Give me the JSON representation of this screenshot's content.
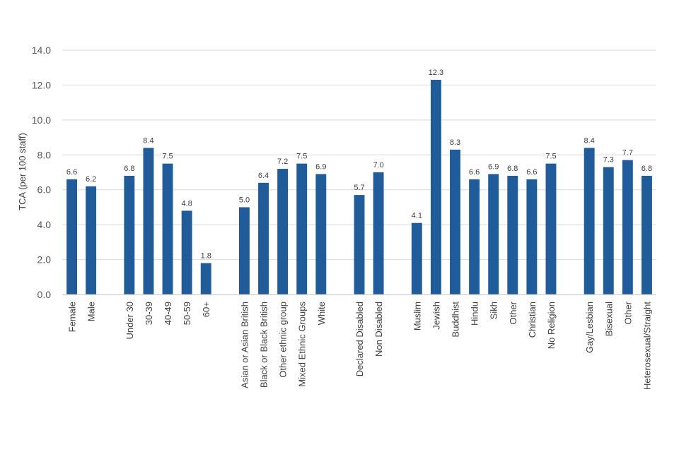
{
  "chart_data": {
    "type": "bar",
    "title": "",
    "xlabel": "",
    "ylabel": "TCA (per 100 staff)",
    "ylim": [
      0,
      14
    ],
    "yticks": [
      "0.0",
      "2.0",
      "4.0",
      "6.0",
      "8.0",
      "10.0",
      "12.0",
      "14.0"
    ],
    "grid": true,
    "legend": "none",
    "bar_color": "#1f5c99",
    "groups": [
      {
        "categories": [
          "Female",
          "Male"
        ],
        "values": [
          6.6,
          6.2
        ],
        "labels": [
          "6.6",
          "6.2"
        ]
      },
      {
        "categories": [
          "Under 30",
          "30-39",
          "40-49",
          "50-59",
          "60+"
        ],
        "values": [
          6.8,
          8.4,
          7.5,
          4.8,
          1.8
        ],
        "labels": [
          "6.8",
          "8.4",
          "7.5",
          "4.8",
          "1.8"
        ]
      },
      {
        "categories": [
          "Asian or Asian British",
          "Black or Black British",
          "Other ethnic group",
          "Mixed Ethnic Groups",
          "White"
        ],
        "values": [
          5.0,
          6.4,
          7.2,
          7.5,
          6.9
        ],
        "labels": [
          "5.0",
          "6.4",
          "7.2",
          "7.5",
          "6.9"
        ]
      },
      {
        "categories": [
          "Declared Disabled",
          "Non Disabled"
        ],
        "values": [
          5.7,
          7.0
        ],
        "labels": [
          "5.7",
          "7.0"
        ]
      },
      {
        "categories": [
          "Muslim",
          "Jewish",
          "Buddhist",
          "Hindu",
          "Sikh",
          "Other",
          "Christian",
          "No Religion"
        ],
        "values": [
          4.1,
          12.3,
          8.3,
          6.6,
          6.9,
          6.8,
          6.6,
          7.5
        ],
        "labels": [
          "4.1",
          "12.3",
          "8.3",
          "6.6",
          "6.9",
          "6.8",
          "6.6",
          "7.5"
        ]
      },
      {
        "categories": [
          "Gay/Lesbian",
          "Bisexual",
          "Other",
          "Heterosexual/Straight"
        ],
        "values": [
          8.4,
          7.3,
          7.7,
          6.8
        ],
        "labels": [
          "8.4",
          "7.3",
          "7.7",
          "6.8"
        ]
      }
    ]
  }
}
